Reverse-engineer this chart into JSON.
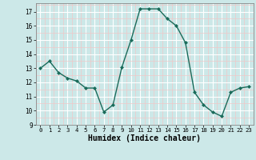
{
  "x": [
    0,
    1,
    2,
    3,
    4,
    5,
    6,
    7,
    8,
    9,
    10,
    11,
    12,
    13,
    14,
    15,
    16,
    17,
    18,
    19,
    20,
    21,
    22,
    23
  ],
  "y": [
    13.0,
    13.5,
    12.7,
    12.3,
    12.1,
    11.6,
    11.6,
    9.9,
    10.4,
    13.1,
    15.0,
    17.2,
    17.2,
    17.2,
    16.5,
    16.0,
    14.8,
    11.3,
    10.4,
    9.9,
    9.6,
    11.3,
    11.6,
    11.7
  ],
  "xlabel": "Humidex (Indice chaleur)",
  "ylim": [
    9,
    17.6
  ],
  "xlim": [
    -0.5,
    23.5
  ],
  "yticks": [
    9,
    10,
    11,
    12,
    13,
    14,
    15,
    16,
    17
  ],
  "xticks": [
    0,
    1,
    2,
    3,
    4,
    5,
    6,
    7,
    8,
    9,
    10,
    11,
    12,
    13,
    14,
    15,
    16,
    17,
    18,
    19,
    20,
    21,
    22,
    23
  ],
  "line_color": "#1a6b5a",
  "marker_color": "#1a6b5a",
  "bg_color": "#cce8e8",
  "grid_major_color": "#ffffff",
  "grid_minor_color": "#f0c8c8",
  "xlabel_fontsize": 7,
  "xlabel_fontweight": "bold"
}
